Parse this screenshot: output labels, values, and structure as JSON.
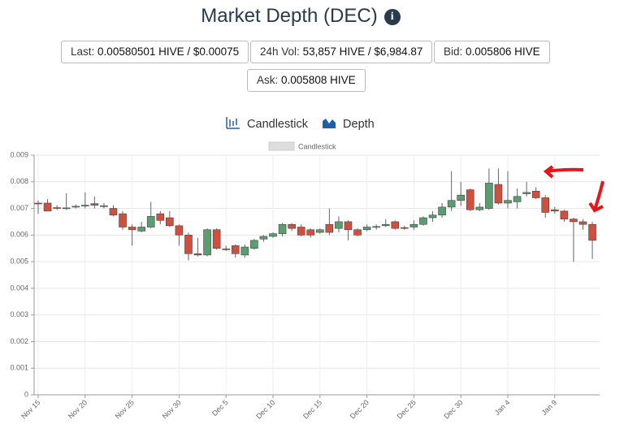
{
  "header": {
    "title": "Market Depth (DEC)"
  },
  "stats": [
    {
      "label": "Last:",
      "value": "0.00580501 HIVE / $0.00075"
    },
    {
      "label": "24h Vol:",
      "value": "53,857 HIVE / $6,984.87"
    },
    {
      "label": "Bid:",
      "value": "0.005806 HIVE"
    },
    {
      "label": "Ask:",
      "value": "0.005808 HIVE"
    }
  ],
  "tabs": [
    "Candlestick",
    "Depth"
  ],
  "chart_data": {
    "type": "candlestick",
    "categories": [
      "Nov 15",
      null,
      null,
      null,
      null,
      "Nov 20",
      null,
      null,
      null,
      null,
      "Nov 25",
      null,
      null,
      null,
      null,
      "Nov 30",
      null,
      null,
      null,
      null,
      "Dec 5",
      null,
      null,
      null,
      null,
      "Dec 10",
      null,
      null,
      null,
      null,
      "Dec 15",
      null,
      null,
      null,
      null,
      "Dec 20",
      null,
      null,
      null,
      null,
      "Dec 25",
      null,
      null,
      null,
      null,
      "Dec 30",
      null,
      null,
      null,
      null,
      "Jan 4",
      null,
      null,
      null,
      null,
      "Jan 9",
      null,
      null,
      null,
      null
    ],
    "series": [
      {
        "name": "Candlestick",
        "color": "#dddddd",
        "up_color": "#5a9e6f",
        "down_color": "#d0503f",
        "open": [
          0.0072,
          0.0072,
          0.00703,
          0.007,
          0.00705,
          0.0071,
          0.00718,
          0.0071,
          0.007,
          0.0068,
          0.0063,
          0.00615,
          0.0063,
          0.0068,
          0.00665,
          0.00635,
          0.006,
          0.0053,
          0.00525,
          0.0062,
          0.00548,
          0.0056,
          0.00525,
          0.0055,
          0.00585,
          0.00595,
          0.00605,
          0.0064,
          0.0063,
          0.0062,
          0.0061,
          0.0064,
          0.00625,
          0.0065,
          0.0062,
          0.0062,
          0.0063,
          0.00635,
          0.0065,
          0.00628,
          0.0063,
          0.0064,
          0.00665,
          0.00675,
          0.00705,
          0.0073,
          0.0077,
          0.00695,
          0.007,
          0.0079,
          0.0072,
          0.00725,
          0.00755,
          0.00765,
          0.0074,
          0.00695,
          0.0069,
          0.0066,
          0.0065,
          0.0064
        ],
        "high": [
          0.0073,
          0.00735,
          0.00712,
          0.00757,
          0.00715,
          0.0076,
          0.00745,
          0.0072,
          0.00712,
          0.0069,
          0.0064,
          0.0065,
          0.00725,
          0.0069,
          0.0069,
          0.0064,
          0.0061,
          0.0059,
          0.00625,
          0.00625,
          0.0056,
          0.00565,
          0.00565,
          0.00585,
          0.006,
          0.0061,
          0.00645,
          0.00645,
          0.0064,
          0.00625,
          0.00625,
          0.007,
          0.0067,
          0.00655,
          0.00625,
          0.0064,
          0.0064,
          0.0066,
          0.00655,
          0.00635,
          0.00655,
          0.0067,
          0.0069,
          0.0072,
          0.0084,
          0.008,
          0.00775,
          0.0072,
          0.0085,
          0.0085,
          0.0084,
          0.00775,
          0.008,
          0.0078,
          0.0075,
          0.00705,
          0.00695,
          0.00665,
          0.0066,
          0.0065
        ],
        "low": [
          0.0068,
          0.0069,
          0.00695,
          0.00695,
          0.007,
          0.007,
          0.007,
          0.007,
          0.0067,
          0.0062,
          0.0056,
          0.0061,
          0.00625,
          0.0064,
          0.0063,
          0.0056,
          0.00505,
          0.0052,
          0.0052,
          0.00545,
          0.0054,
          0.00515,
          0.00515,
          0.00545,
          0.00575,
          0.0059,
          0.00595,
          0.00615,
          0.00595,
          0.0059,
          0.00605,
          0.006,
          0.0061,
          0.0058,
          0.00595,
          0.00615,
          0.0062,
          0.0063,
          0.0062,
          0.0062,
          0.0062,
          0.00635,
          0.0065,
          0.00665,
          0.0069,
          0.0071,
          0.0069,
          0.0069,
          0.00695,
          0.00715,
          0.007,
          0.007,
          0.00745,
          0.00735,
          0.00665,
          0.0068,
          0.0065,
          0.005,
          0.0062,
          0.0051
        ],
        "close": [
          0.00718,
          0.0069,
          0.007,
          0.00702,
          0.00708,
          0.00712,
          0.00712,
          0.0071,
          0.00675,
          0.0063,
          0.0062,
          0.0063,
          0.0067,
          0.00655,
          0.00635,
          0.006,
          0.0053,
          0.00525,
          0.0062,
          0.0055,
          0.00545,
          0.0053,
          0.00555,
          0.0058,
          0.00595,
          0.00605,
          0.0064,
          0.00625,
          0.006,
          0.006,
          0.0062,
          0.0061,
          0.0065,
          0.0062,
          0.006,
          0.0063,
          0.00632,
          0.0064,
          0.00625,
          0.00625,
          0.0064,
          0.00665,
          0.00675,
          0.00705,
          0.0073,
          0.0075,
          0.00695,
          0.00705,
          0.00795,
          0.0072,
          0.0073,
          0.00745,
          0.0076,
          0.0074,
          0.00685,
          0.0069,
          0.0066,
          0.0065,
          0.0064,
          0.0058
        ]
      }
    ],
    "ylim": [
      0,
      0.009
    ],
    "yticks": [
      0,
      0.001,
      0.002,
      0.003,
      0.004,
      0.005,
      0.006,
      0.007,
      0.008,
      0.009
    ],
    "grid": true
  }
}
